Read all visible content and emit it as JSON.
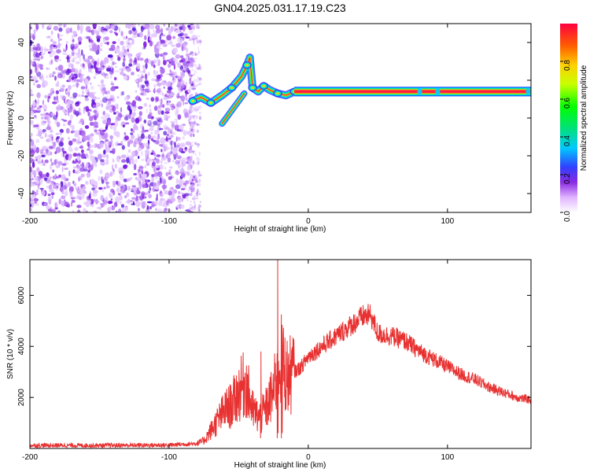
{
  "title": "GN04.2025.031.17.19.C23",
  "chart_data": [
    {
      "type": "heatmap",
      "xlabel": "Height of straight line (km)",
      "ylabel": "Frequency (Hz)",
      "xlim": [
        -200,
        160
      ],
      "ylim": [
        -50,
        50
      ],
      "xticks": [
        -200,
        -100,
        0,
        100
      ],
      "yticks": [
        -40,
        -20,
        0,
        20,
        40
      ],
      "colorbar": {
        "label": "Normalized spectral amplitude",
        "range": [
          0.0,
          1.0
        ],
        "ticks": [
          "0.0",
          "0.2",
          "0.4",
          "0.6",
          "0.8"
        ]
      },
      "noise_region_x": [
        -200,
        -82
      ],
      "signal_line": {
        "x": [
          5,
          160
        ],
        "y": 14
      },
      "signal_path": [
        [
          -83,
          9
        ],
        [
          -77,
          11
        ],
        [
          -70,
          8
        ],
        [
          -62,
          12
        ],
        [
          -55,
          16
        ],
        [
          -48,
          22
        ],
        [
          -44,
          28
        ],
        [
          -42,
          32
        ],
        [
          -40,
          16
        ],
        [
          -36,
          14
        ],
        [
          -32,
          17
        ],
        [
          -28,
          15
        ],
        [
          -22,
          13
        ],
        [
          -16,
          12
        ],
        [
          -10,
          14
        ],
        [
          -4,
          14
        ],
        [
          0,
          14
        ]
      ],
      "signal_branch": [
        [
          -62,
          -3
        ],
        [
          -58,
          1
        ],
        [
          -54,
          5
        ],
        [
          -50,
          9
        ],
        [
          -46,
          13
        ]
      ]
    },
    {
      "type": "line",
      "xlabel": "Height of straight line (km)",
      "ylabel": "SNR (10 * v/v)",
      "xlim": [
        -200,
        160
      ],
      "ylim": [
        0,
        7400
      ],
      "xticks": [
        -200,
        -100,
        0,
        100
      ],
      "yticks": [
        2000,
        4000,
        6000
      ],
      "color": "#e83232",
      "envelope": {
        "x": [
          -200,
          -150,
          -100,
          -80,
          -75,
          -70,
          -65,
          -60,
          -55,
          -50,
          -45,
          -40,
          -35,
          -30,
          -25,
          -22,
          -20,
          -15,
          -10,
          -5,
          0,
          10,
          20,
          30,
          40,
          45,
          50,
          60,
          70,
          80,
          90,
          100,
          110,
          120,
          130,
          140,
          150,
          160
        ],
        "y": [
          120,
          120,
          130,
          200,
          300,
          700,
          1100,
          1500,
          1700,
          2200,
          2600,
          1500,
          1200,
          1600,
          2200,
          3000,
          3500,
          2800,
          3000,
          3200,
          3600,
          4000,
          4400,
          4800,
          5200,
          5200,
          4500,
          4400,
          4200,
          3800,
          3500,
          3200,
          2900,
          2700,
          2400,
          2200,
          2000,
          1900
        ]
      },
      "spikes": [
        [
          -34,
          3800
        ],
        [
          -22,
          7400
        ],
        [
          -19,
          3500
        ]
      ]
    }
  ]
}
